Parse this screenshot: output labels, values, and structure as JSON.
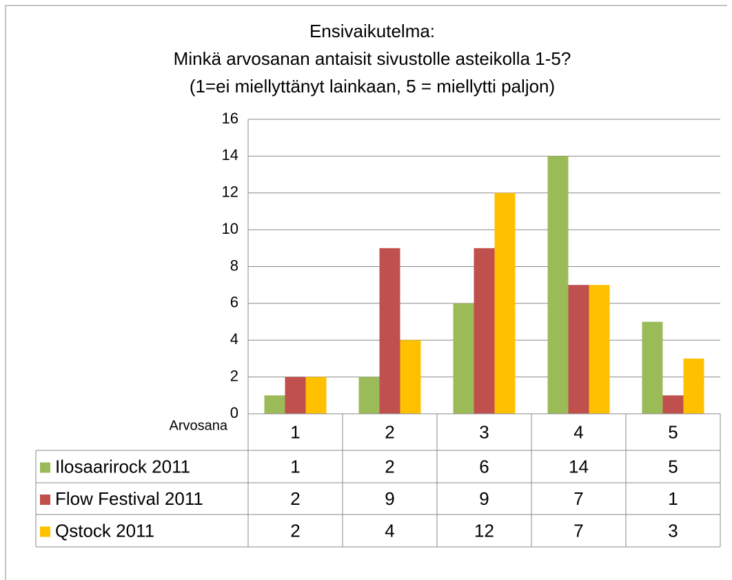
{
  "chart_data": {
    "type": "bar",
    "title": [
      "Ensivaikutelma:",
      "Minkä arvosanan antaisit sivustolle asteikolla 1-5?",
      "(1=ei miellyttänyt lainkaan, 5 = miellytti paljon)"
    ],
    "x_label": "Arvosana",
    "categories": [
      "1",
      "2",
      "3",
      "4",
      "5"
    ],
    "series": [
      {
        "name": "Ilosaarirock 2011",
        "color": "#9bbb59",
        "values": [
          1,
          2,
          6,
          14,
          5
        ]
      },
      {
        "name": "Flow Festival 2011",
        "color": "#c0504d",
        "values": [
          2,
          9,
          9,
          7,
          1
        ]
      },
      {
        "name": "Qstock 2011",
        "color": "#ffc000",
        "values": [
          2,
          4,
          12,
          7,
          3
        ]
      }
    ],
    "ylim": [
      0,
      16
    ],
    "yticks": [
      0,
      2,
      4,
      6,
      8,
      10,
      12,
      14,
      16
    ],
    "grid": true,
    "data_table": true
  }
}
